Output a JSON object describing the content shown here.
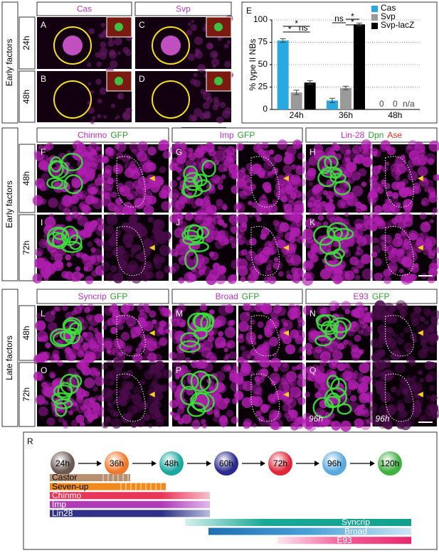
{
  "figure": {
    "top": {
      "side_label": "Early factors",
      "rows": [
        "24h",
        "48h"
      ],
      "columns": [
        {
          "letters": [
            "A",
            "B"
          ],
          "header": [
            {
              "text": "Cas",
              "color": "#b43cb4"
            }
          ]
        },
        {
          "letters": [
            "C",
            "D"
          ],
          "header": [
            {
              "text": "Svp",
              "color": "#b43cb4"
            }
          ]
        }
      ]
    },
    "middle": {
      "side_label": "Early factors",
      "rows": [
        "48h",
        "72h"
      ],
      "columns": [
        {
          "letters": [
            "F",
            "I"
          ],
          "header": [
            {
              "text": "Chinmo",
              "color": "#c030c0"
            },
            {
              "text": "GFP",
              "color": "#2f9e2f"
            }
          ]
        },
        {
          "letters": [
            "G",
            "J"
          ],
          "header": [
            {
              "text": "Imp",
              "color": "#c030c0"
            },
            {
              "text": "GFP",
              "color": "#2f9e2f"
            }
          ]
        },
        {
          "letters": [
            "H",
            "K"
          ],
          "header": [
            {
              "text": "Lin-28",
              "color": "#c030c0"
            },
            {
              "text": "Dpn",
              "color": "#2f9e2f"
            },
            {
              "text": "Ase",
              "color": "#e0301e"
            }
          ]
        }
      ]
    },
    "bottom": {
      "side_label": "Late factors",
      "rows": [
        "48h",
        "72h"
      ],
      "note": "96h",
      "columns": [
        {
          "letters": [
            "L",
            "O"
          ],
          "header": [
            {
              "text": "Syncrip",
              "color": "#c030c0"
            },
            {
              "text": "GFP",
              "color": "#2f9e2f"
            }
          ]
        },
        {
          "letters": [
            "M",
            "P"
          ],
          "header": [
            {
              "text": "Broad",
              "color": "#c030c0"
            },
            {
              "text": "GFP",
              "color": "#2f9e2f"
            }
          ]
        },
        {
          "letters": [
            "N",
            "Q"
          ],
          "header": [
            {
              "text": "E93",
              "color": "#c030c0"
            },
            {
              "text": "GFP",
              "color": "#2f9e2f"
            }
          ]
        }
      ]
    },
    "timeline": {
      "letter": "R",
      "stages": [
        "24h",
        "36h",
        "48h",
        "60h",
        "72h",
        "96h",
        "120h"
      ],
      "bars": [
        "Castor",
        "Seven-up",
        "Chinmo",
        "Imp",
        "Lin28",
        "Syncrip",
        "Broad",
        "E93"
      ]
    }
  },
  "chart_data": {
    "type": "bar",
    "panel_label": "E",
    "ylabel": "% type II NBs",
    "categories": [
      "24h",
      "36h",
      "48h"
    ],
    "series": [
      {
        "name": "Cas",
        "color": "#29a9e1",
        "values": [
          77,
          10,
          0
        ],
        "errors": [
          2,
          2.5,
          null
        ]
      },
      {
        "name": "Svp",
        "color": "#9a9a9a",
        "values": [
          19,
          24,
          0
        ],
        "errors": [
          2.5,
          2,
          null
        ]
      },
      {
        "name": "Svp-lacZ",
        "color": "#000000",
        "values": [
          30,
          95,
          null
        ],
        "errors": [
          2,
          1.5,
          null
        ]
      }
    ],
    "annotations": [
      "*",
      "*",
      "ns",
      "ns",
      "*",
      "*",
      "n/a"
    ],
    "ylim": [
      0,
      100
    ],
    "yticks": [
      0,
      25,
      50,
      75,
      100
    ],
    "grid": true,
    "legend": "top-right"
  }
}
